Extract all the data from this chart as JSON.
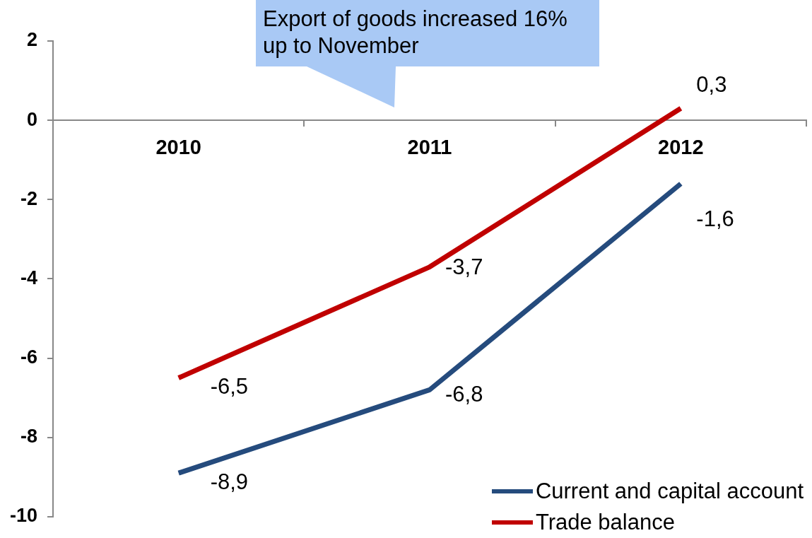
{
  "chart_data": {
    "type": "line",
    "categories": [
      "2010",
      "2011",
      "2012"
    ],
    "series": [
      {
        "name": "Current and capital account",
        "color": "#254b7d",
        "values": [
          -8.9,
          -6.8,
          -1.6
        ],
        "value_labels": [
          "-8,9",
          "-6,8",
          "-1,6"
        ]
      },
      {
        "name": "Trade balance",
        "color": "#c00000",
        "values": [
          -6.5,
          -3.7,
          0.3
        ],
        "value_labels": [
          "-6,5",
          "-3,7",
          "0,3"
        ]
      }
    ],
    "ylim": [
      -10,
      2
    ],
    "yticks": [
      -10,
      -8,
      -6,
      -4,
      -2,
      0,
      2
    ],
    "grid": false,
    "legend": "bottom right",
    "marker": "none",
    "line_style": "solid",
    "annotations": [
      "Export of goods increased 16% up to November"
    ]
  }
}
